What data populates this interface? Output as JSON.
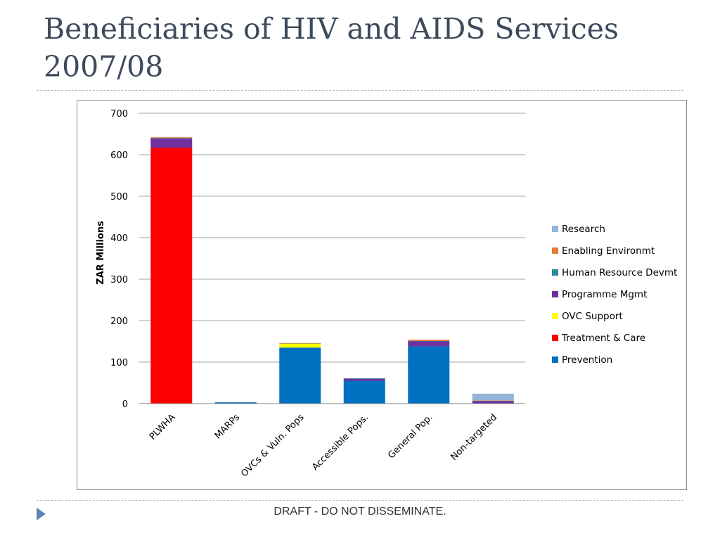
{
  "slide": {
    "title": "Beneficiaries of HIV and AIDS Services 2007/08",
    "footer": "DRAFT - DO NOT DISSEMINATE."
  },
  "chart_data": {
    "type": "bar",
    "stacked": true,
    "title": "",
    "xlabel": "",
    "ylabel": "ZAR Millions",
    "ylim": [
      0,
      700
    ],
    "yticks": [
      0,
      100,
      200,
      300,
      400,
      500,
      600,
      700
    ],
    "grid": true,
    "legend_position": "right",
    "categories": [
      "PLWHA",
      "MARPs",
      "OVCs & Vuln. Pops",
      "Accessible Pops.",
      "General Pop.",
      "Non-targeted"
    ],
    "series": [
      {
        "name": "Prevention",
        "color": "#0070c0",
        "values": [
          0,
          3,
          135,
          55,
          138,
          0
        ]
      },
      {
        "name": "Treatment & Care",
        "color": "#ff0000",
        "values": [
          617,
          0,
          0,
          0,
          0,
          0
        ]
      },
      {
        "name": "OVC Support",
        "color": "#ffff00",
        "values": [
          0,
          0,
          10,
          0,
          0,
          0
        ]
      },
      {
        "name": "Programme Mgmt",
        "color": "#7030a0",
        "values": [
          22,
          0,
          1,
          5,
          12,
          6
        ]
      },
      {
        "name": "Human Resource Devmt",
        "color": "#31859c",
        "values": [
          1,
          0,
          0,
          1,
          1,
          1
        ]
      },
      {
        "name": "Enabling Environmt",
        "color": "#e07b39",
        "values": [
          2,
          0,
          0,
          0,
          3,
          1
        ]
      },
      {
        "name": "Research",
        "color": "#95b3d7",
        "values": [
          0,
          0,
          0,
          0,
          0,
          16
        ]
      }
    ],
    "legend_order": [
      "Research",
      "Enabling Environmt",
      "Human Resource Devmt",
      "Programme Mgmt",
      "OVC Support",
      "Treatment & Care",
      "Prevention"
    ]
  }
}
